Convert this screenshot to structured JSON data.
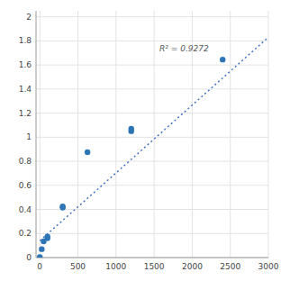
{
  "chart_data": {
    "type": "scatter",
    "series": [
      {
        "type": "scatter",
        "color": "#2E75B6",
        "marker": "circle",
        "x": [
          0,
          25,
          50,
          100,
          100,
          300,
          300,
          625,
          1200,
          1200,
          2400
        ],
        "values": [
          0.005,
          0.07,
          0.135,
          0.16,
          0.175,
          0.415,
          0.425,
          0.875,
          1.05,
          1.07,
          1.645
        ]
      },
      {
        "type": "line",
        "color": "#4472C4",
        "line_style": "dotted",
        "x": [
          0,
          3000
        ],
        "values": [
          0.14,
          1.83
        ]
      }
    ],
    "annotations": [
      {
        "text": "R² = 0.9272",
        "x": 1570,
        "y": 1.71
      }
    ],
    "xlim": [
      -50,
      3000
    ],
    "ylim": [
      0,
      2.05
    ],
    "xticks": [
      0,
      500,
      1000,
      1500,
      2000,
      2500,
      3000
    ],
    "yticks": [
      0,
      0.2,
      0.4,
      0.6,
      0.8,
      1.0,
      1.2,
      1.4,
      1.6,
      1.8,
      2.0
    ],
    "grid": true
  }
}
